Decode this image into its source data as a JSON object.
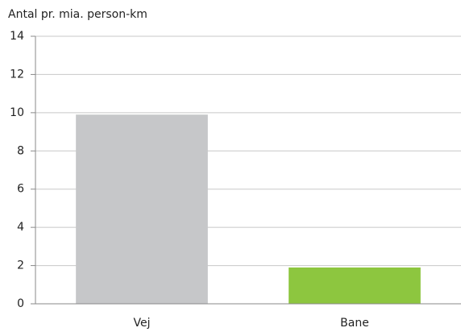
{
  "chart_data": {
    "type": "bar",
    "y_label": "Antal pr. mia. person-km",
    "categories": [
      "Vej",
      "Bane"
    ],
    "values": [
      9.9,
      1.9
    ],
    "colors": [
      "#c6c7c9",
      "#8dc63f"
    ],
    "ylim": [
      0,
      14
    ],
    "yticks": [
      0,
      2,
      4,
      6,
      8,
      10,
      12,
      14
    ],
    "grid": true
  }
}
